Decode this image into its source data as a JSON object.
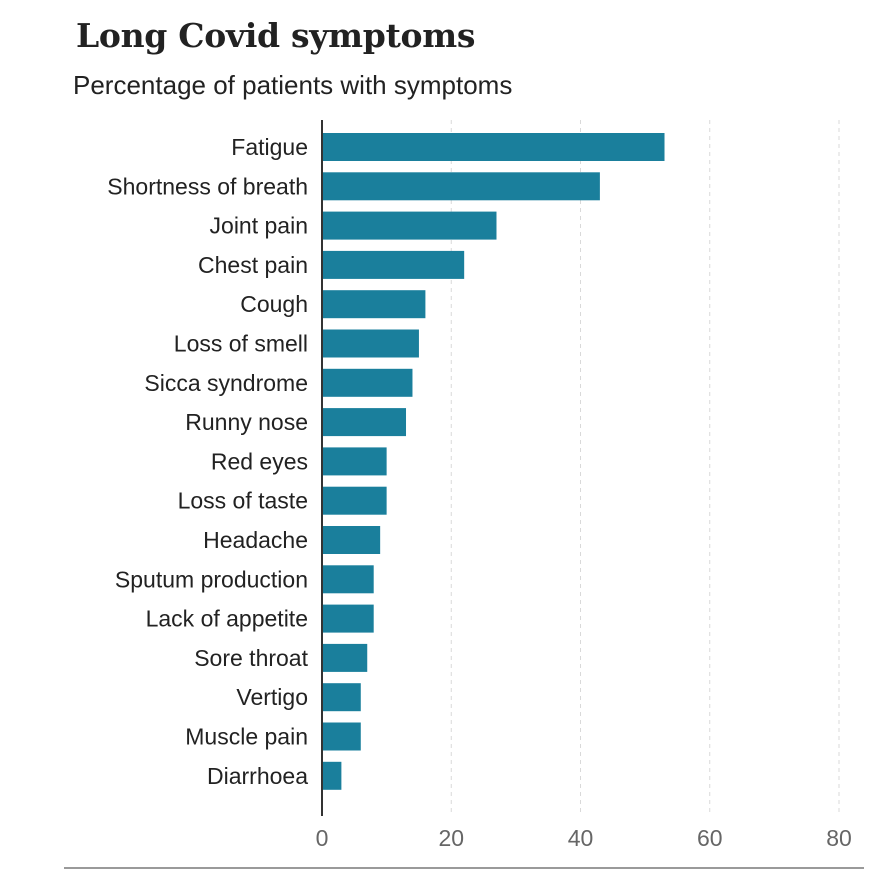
{
  "header": {
    "title": "Long Covid symptoms",
    "subtitle": "Percentage of patients with symptoms"
  },
  "colors": {
    "bar": "#1a7f9c",
    "grid": "#d9d9d9",
    "axis": "#333333",
    "label": "#222222",
    "tick": "#666666"
  },
  "chart_data": {
    "type": "bar",
    "orientation": "horizontal",
    "title": "Long Covid symptoms",
    "subtitle": "Percentage of patients with symptoms",
    "xlabel": "",
    "ylabel": "",
    "xlim": [
      0,
      80
    ],
    "xticks": [
      "0",
      "20",
      "40",
      "60",
      "80"
    ],
    "grid": true,
    "categories": [
      "Fatigue",
      "Shortness of breath",
      "Joint pain",
      "Chest pain",
      "Cough",
      "Loss of smell",
      "Sicca syndrome",
      "Runny nose",
      "Red eyes",
      "Loss of taste",
      "Headache",
      "Sputum production",
      "Lack of appetite",
      "Sore throat",
      "Vertigo",
      "Muscle pain",
      "Diarrhoea"
    ],
    "values": [
      53,
      43,
      27,
      22,
      16,
      15,
      14,
      13,
      10,
      10,
      9,
      8,
      8,
      7,
      6,
      6,
      3
    ]
  }
}
